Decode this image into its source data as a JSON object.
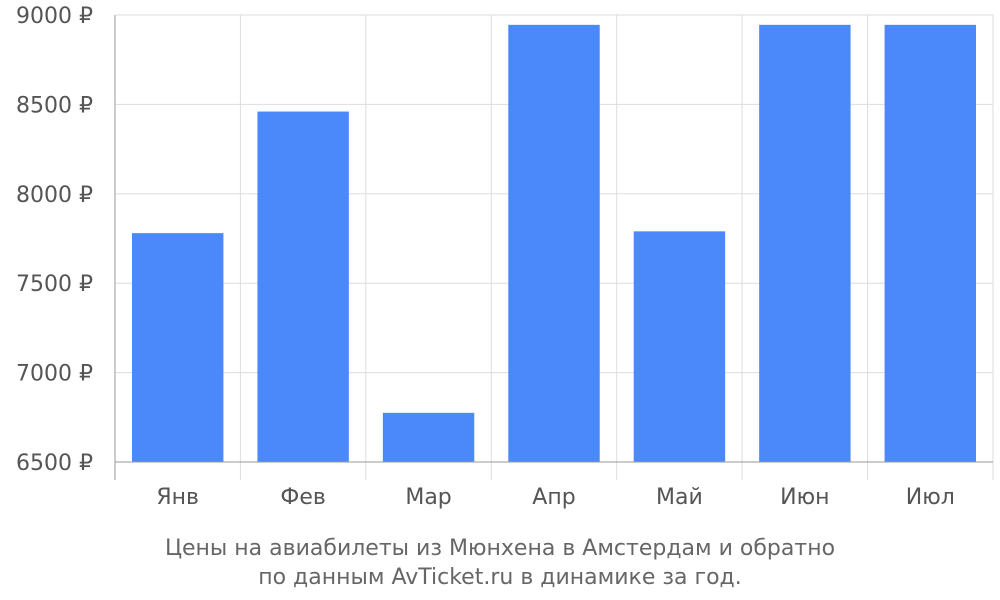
{
  "chart_data": {
    "type": "bar",
    "categories": [
      "Янв",
      "Фев",
      "Мар",
      "Апр",
      "Май",
      "Июн",
      "Июл"
    ],
    "values": [
      7780,
      8460,
      6775,
      8945,
      7790,
      8945,
      8945
    ],
    "ylim": [
      6500,
      9000
    ],
    "yticks": [
      6500,
      7000,
      7500,
      8000,
      8500,
      9000
    ],
    "ytick_labels": [
      "6500 ₽",
      "7000 ₽",
      "7500 ₽",
      "8000 ₽",
      "8500 ₽",
      "9000 ₽"
    ],
    "grid": true,
    "bar_color": "#4b89fb",
    "caption_line1": "Цены на авиабилеты из Мюнхена в Амстердам и обратно",
    "caption_line2": "по данным AvTicket.ru в динамике за год."
  }
}
